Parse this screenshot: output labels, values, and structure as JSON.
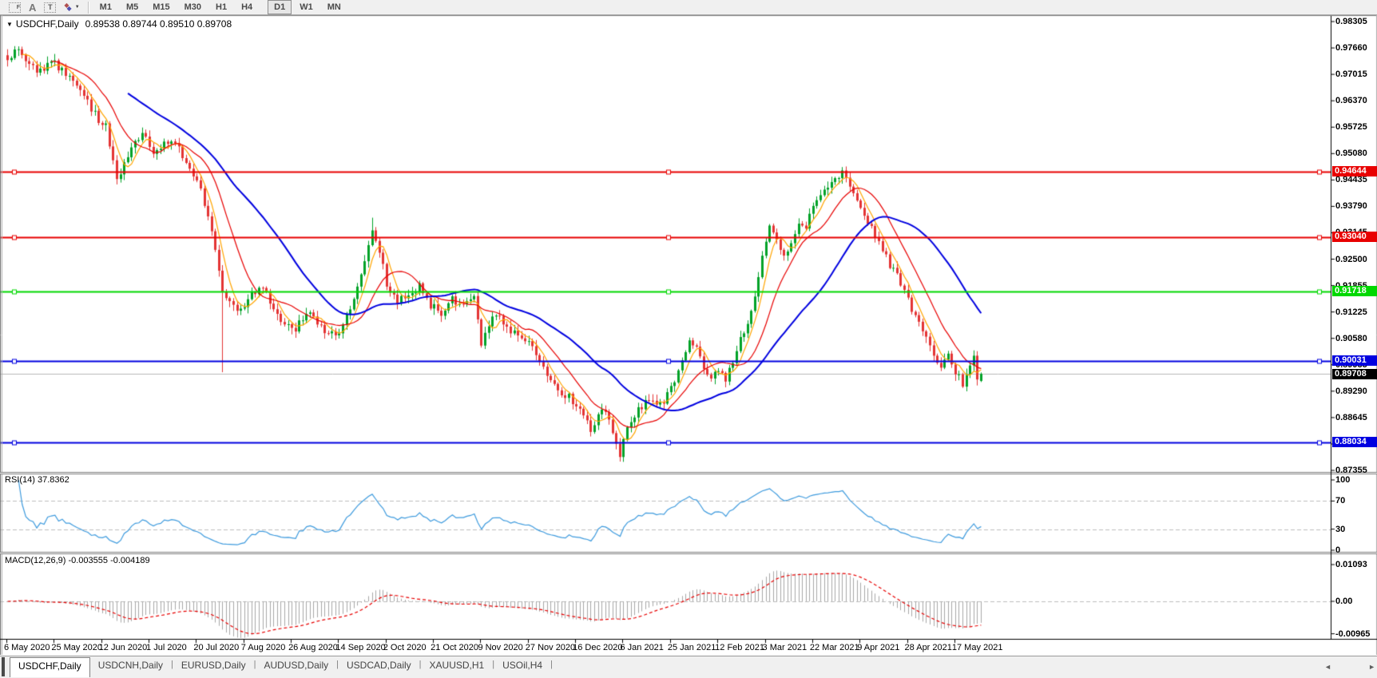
{
  "toolbar": {
    "tools": [
      {
        "id": "fibonacci-tool",
        "glyph": "F"
      },
      {
        "id": "text-tool",
        "glyph": "A"
      },
      {
        "id": "text-label-tool",
        "glyph": "T"
      },
      {
        "id": "arrows-tool",
        "glyph": "◆"
      }
    ],
    "arrows_caret": "▼",
    "timeframes": [
      "M1",
      "M5",
      "M15",
      "M30",
      "H1",
      "H4",
      "D1",
      "W1",
      "MN"
    ],
    "active_timeframe": "D1"
  },
  "chart_header": {
    "collapse_glyph": "▼",
    "title": "USDCHF,Daily",
    "ohlc_text": "0.89538 0.89744 0.89510 0.89708"
  },
  "price_axis": {
    "labels": [
      "0.98305",
      "0.97660",
      "0.97015",
      "0.96370",
      "0.95725",
      "0.95080",
      "0.94435",
      "0.93790",
      "0.93145",
      "0.92500",
      "0.91855",
      "0.91225",
      "0.90580",
      "0.89935",
      "0.89290",
      "0.88645",
      "0.88000",
      "0.87355"
    ],
    "top_value": 0.98305,
    "bottom_value": 0.87355
  },
  "date_axis": {
    "labels": [
      "6 May 2020",
      "25 May 2020",
      "12 Jun 2020",
      "1 Jul 2020",
      "20 Jul 2020",
      "7 Aug 2020",
      "26 Aug 2020",
      "14 Sep 2020",
      "2 Oct 2020",
      "21 Oct 2020",
      "9 Nov 2020",
      "27 Nov 2020",
      "16 Dec 2020",
      "6 Jan 2021",
      "25 Jan 2021",
      "12 Feb 2021",
      "3 Mar 2021",
      "22 Mar 2021",
      "9 Apr 2021",
      "28 Apr 2021",
      "17 May 2021"
    ],
    "indices": [
      0,
      13,
      26,
      39,
      52,
      65,
      78,
      91,
      104,
      117,
      130,
      143,
      156,
      169,
      182,
      195,
      208,
      221,
      234,
      247,
      260
    ]
  },
  "hlines": [
    {
      "label": "0.94644",
      "value": 0.94644,
      "color": "#e80000"
    },
    {
      "label": "0.93040",
      "value": 0.9304,
      "color": "#e80000"
    },
    {
      "label": "0.91718",
      "value": 0.91718,
      "color": "#00d800"
    },
    {
      "label": "0.90031",
      "value": 0.90031,
      "color": "#0000e0"
    },
    {
      "label": "0.88034",
      "value": 0.88034,
      "color": "#0000e0"
    }
  ],
  "current_price": {
    "label": "0.89708",
    "value": 0.89708,
    "tag_color": "#000000",
    "line_color": "#b8b8b8"
  },
  "rsi_pane": {
    "label": "RSI(14) 37.8362",
    "axis_labels": [
      "100",
      "70",
      "30",
      "0"
    ],
    "axis_values": [
      100,
      70,
      30,
      0
    ],
    "levels": [
      70,
      30
    ],
    "last_value": 37.8362,
    "line_color": "#3e9bde"
  },
  "macd_pane": {
    "label": "MACD(12,26,9) -0.003555 -0.004189",
    "axis_labels": [
      "0.01093",
      "0.00",
      "-0.00965"
    ],
    "axis_values": [
      0.01093,
      0,
      -0.00965
    ],
    "hist_color": "#a8a8a8",
    "signal_color": "#e80000"
  },
  "tabs": {
    "items": [
      {
        "label": "USDCHF,Daily",
        "active": true
      },
      {
        "label": "USDCNH,Daily",
        "active": false
      },
      {
        "label": "EURUSD,Daily",
        "active": false
      },
      {
        "label": "AUDUSD,Daily",
        "active": false
      },
      {
        "label": "USDCAD,Daily",
        "active": false
      },
      {
        "label": "XAUUSD,H1",
        "active": false
      },
      {
        "label": "USOil,H4",
        "active": false
      }
    ],
    "scroll_left_glyph": "◄",
    "scroll_right_glyph": "►"
  },
  "chart_data": {
    "type": "candlestick",
    "symbol": "USDCHF",
    "timeframe": "Daily",
    "last_ohlc": {
      "open": 0.89538,
      "high": 0.89744,
      "low": 0.8951,
      "close": 0.89708
    },
    "candle_count": 268,
    "up_color": "#00a227",
    "down_color": "#e43434",
    "ma_lines": [
      {
        "period": 5,
        "color": "#ffa500"
      },
      {
        "period": 13,
        "color": "#e80000"
      },
      {
        "period": 34,
        "color": "#0000e0"
      }
    ],
    "price_axis_range": {
      "top": 0.98305,
      "bottom": 0.87355
    },
    "close_anchors": [
      [
        0,
        0.9745
      ],
      [
        3,
        0.9762
      ],
      [
        6,
        0.972
      ],
      [
        9,
        0.9708
      ],
      [
        12,
        0.9735
      ],
      [
        15,
        0.9712
      ],
      [
        18,
        0.969
      ],
      [
        21,
        0.9645
      ],
      [
        24,
        0.9603
      ],
      [
        27,
        0.9572
      ],
      [
        30,
        0.9448
      ],
      [
        32,
        0.9478
      ],
      [
        34,
        0.9515
      ],
      [
        37,
        0.9562
      ],
      [
        40,
        0.951
      ],
      [
        43,
        0.9528
      ],
      [
        46,
        0.954
      ],
      [
        49,
        0.9482
      ],
      [
        52,
        0.9438
      ],
      [
        55,
        0.9365
      ],
      [
        57,
        0.9268
      ],
      [
        59,
        0.917
      ],
      [
        61,
        0.915
      ],
      [
        64,
        0.9125
      ],
      [
        67,
        0.9162
      ],
      [
        70,
        0.918
      ],
      [
        73,
        0.9128
      ],
      [
        76,
        0.909
      ],
      [
        79,
        0.9078
      ],
      [
        82,
        0.9118
      ],
      [
        85,
        0.9098
      ],
      [
        88,
        0.9062
      ],
      [
        91,
        0.9072
      ],
      [
        94,
        0.9128
      ],
      [
        97,
        0.9205
      ],
      [
        100,
        0.9322
      ],
      [
        102,
        0.9268
      ],
      [
        104,
        0.9192
      ],
      [
        107,
        0.9148
      ],
      [
        110,
        0.9162
      ],
      [
        113,
        0.9185
      ],
      [
        116,
        0.9138
      ],
      [
        119,
        0.9122
      ],
      [
        122,
        0.9155
      ],
      [
        125,
        0.9132
      ],
      [
        128,
        0.9158
      ],
      [
        130,
        0.9045
      ],
      [
        132,
        0.9088
      ],
      [
        134,
        0.9118
      ],
      [
        137,
        0.9088
      ],
      [
        140,
        0.9062
      ],
      [
        143,
        0.9048
      ],
      [
        146,
        0.9002
      ],
      [
        149,
        0.8962
      ],
      [
        152,
        0.8928
      ],
      [
        155,
        0.8905
      ],
      [
        158,
        0.8872
      ],
      [
        160,
        0.8838
      ],
      [
        162,
        0.8872
      ],
      [
        164,
        0.8888
      ],
      [
        166,
        0.8822
      ],
      [
        168,
        0.8778
      ],
      [
        170,
        0.8832
      ],
      [
        173,
        0.8886
      ],
      [
        176,
        0.8906
      ],
      [
        179,
        0.8892
      ],
      [
        182,
        0.8936
      ],
      [
        185,
        0.9
      ],
      [
        187,
        0.9058
      ],
      [
        189,
        0.9032
      ],
      [
        191,
        0.8992
      ],
      [
        193,
        0.8958
      ],
      [
        195,
        0.8986
      ],
      [
        197,
        0.8952
      ],
      [
        199,
        0.9002
      ],
      [
        201,
        0.9052
      ],
      [
        203,
        0.9102
      ],
      [
        205,
        0.9162
      ],
      [
        207,
        0.9252
      ],
      [
        209,
        0.933
      ],
      [
        211,
        0.9302
      ],
      [
        213,
        0.9262
      ],
      [
        215,
        0.9292
      ],
      [
        217,
        0.9342
      ],
      [
        219,
        0.9332
      ],
      [
        221,
        0.9372
      ],
      [
        223,
        0.9402
      ],
      [
        225,
        0.9428
      ],
      [
        227,
        0.945
      ],
      [
        229,
        0.9462
      ],
      [
        231,
        0.9432
      ],
      [
        233,
        0.94
      ],
      [
        235,
        0.9362
      ],
      [
        237,
        0.933
      ],
      [
        239,
        0.9292
      ],
      [
        241,
        0.9256
      ],
      [
        243,
        0.9222
      ],
      [
        245,
        0.9192
      ],
      [
        248,
        0.9132
      ],
      [
        251,
        0.9072
      ],
      [
        254,
        0.9022
      ],
      [
        256,
        0.8992
      ],
      [
        258,
        0.9012
      ],
      [
        260,
        0.8976
      ],
      [
        262,
        0.8946
      ],
      [
        264,
        0.8992
      ],
      [
        265,
        0.9012
      ],
      [
        266,
        0.8954
      ],
      [
        267,
        0.89708
      ]
    ],
    "special_wicks": {
      "lows": [
        [
          59,
          0.8975
        ],
        [
          168,
          0.8757
        ]
      ],
      "highs": [
        [
          100,
          0.9352
        ],
        [
          229,
          0.9472
        ]
      ]
    },
    "rsi": {
      "period": 14,
      "last_value": 37.8362,
      "overbought": 70,
      "oversold": 30,
      "scale": [
        0,
        100
      ]
    },
    "macd": {
      "fast": 12,
      "slow": 26,
      "signal_period": 9,
      "last_macd": -0.003555,
      "last_signal": -0.004189,
      "axis_max": 0.01093,
      "axis_min": -0.00965
    }
  }
}
